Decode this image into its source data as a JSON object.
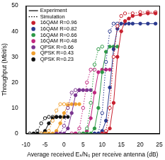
{
  "chart_data": {
    "type": "line",
    "x_label": "Average received Eₛ/N₀ per receive antenna (dB)",
    "y_label": "Throughput (Mbit/s)",
    "xlim": [
      -10,
      25
    ],
    "xticks": [
      -10,
      -5,
      0,
      5,
      10,
      15,
      20,
      25
    ],
    "ylim": [
      0,
      50
    ],
    "yticks": [
      0,
      10,
      20,
      30,
      40,
      50
    ],
    "grid": false,
    "legend": "upper left",
    "legend_styles": [
      {
        "name": "Experiment",
        "line_style": "solid",
        "marker": "filled circle"
      },
      {
        "name": "Simulation",
        "line_style": "dotted",
        "marker": "open circle"
      }
    ],
    "series": [
      {
        "name": "16QAM R=0.96",
        "color": "#c8202e",
        "experiment": {
          "x": [
            10,
            11,
            12,
            13,
            14,
            15,
            16,
            17,
            18,
            20,
            22,
            24
          ],
          "values": [
            0,
            0,
            2,
            12,
            30,
            40,
            44,
            45,
            46,
            46.5,
            47,
            47
          ]
        },
        "simulation": {
          "x": [
            10,
            11,
            12,
            13,
            14,
            15,
            16,
            18,
            20,
            22,
            24
          ],
          "values": [
            0,
            1,
            10,
            30,
            42,
            46,
            47,
            47,
            47.5,
            47.5,
            47.5
          ]
        }
      },
      {
        "name": "16QAM R=0.82",
        "color": "#2b3a8f",
        "experiment": {
          "x": [
            8,
            9,
            10,
            11,
            12,
            13,
            14,
            15,
            16,
            17,
            18,
            20,
            22,
            24
          ],
          "values": [
            0,
            0,
            1,
            5,
            18,
            33,
            41,
            43,
            43,
            43,
            43,
            43,
            43,
            43
          ]
        },
        "simulation": {
          "x": [
            8,
            9,
            10,
            11,
            12,
            13,
            14
          ],
          "values": [
            0,
            0,
            8,
            28,
            40,
            43,
            43
          ]
        }
      },
      {
        "name": "16QAM R=0.66",
        "color": "#2e9a47",
        "experiment": {
          "x": [
            5,
            6,
            7,
            8,
            9,
            10,
            11,
            12,
            13,
            14
          ],
          "values": [
            0,
            0,
            0,
            2,
            10,
            24,
            32,
            34,
            34,
            34
          ]
        },
        "simulation": {
          "x": [
            4,
            5,
            6,
            7,
            8,
            9,
            10
          ],
          "values": [
            0,
            0,
            2,
            12,
            27,
            33,
            34
          ]
        }
      },
      {
        "name": "16QAM R=0.48",
        "color": "#c0267e",
        "experiment": {
          "x": [
            3,
            4,
            5,
            6,
            7,
            8,
            9,
            10,
            11,
            12
          ],
          "values": [
            0,
            0,
            0,
            1,
            6,
            16,
            24,
            25,
            25,
            25
          ]
        },
        "simulation": {
          "x": [
            2,
            3,
            4,
            5,
            6,
            7,
            8
          ],
          "values": [
            0,
            0,
            2,
            10,
            20,
            25,
            25
          ]
        }
      },
      {
        "name": "QPSK R=0.66",
        "color": "#7a3590",
        "experiment": {
          "x": [
            -2,
            -1,
            0,
            1,
            2,
            3,
            4,
            5,
            6,
            7
          ],
          "values": [
            0,
            0,
            0,
            2,
            8,
            15,
            17,
            17,
            17,
            17
          ]
        },
        "simulation": {
          "x": [
            -1,
            0,
            1,
            2,
            3,
            4
          ],
          "values": [
            0,
            3,
            10,
            16,
            17,
            17
          ]
        }
      },
      {
        "name": "QPSK R=0.43",
        "color": "#f0a030",
        "experiment": {
          "x": [
            -5,
            -4,
            -3,
            -2,
            -1,
            0,
            1,
            2,
            3,
            4
          ],
          "values": [
            0,
            0,
            0,
            1,
            4,
            8,
            11,
            11.5,
            11.5,
            11.5
          ]
        },
        "simulation": {
          "x": [
            -6,
            -5,
            -4,
            -3,
            -2,
            -1,
            0,
            1
          ],
          "values": [
            0,
            0,
            1,
            5,
            9,
            11.5,
            11.5,
            11.5
          ]
        }
      },
      {
        "name": "QPSK R=0.23",
        "color": "#111111",
        "experiment": {
          "x": [
            -8,
            -7,
            -6,
            -5,
            -4,
            -3,
            -2,
            -1,
            0,
            1
          ],
          "values": [
            0,
            0,
            0,
            1,
            4,
            6,
            6.5,
            6.5,
            6.5,
            6.5
          ]
        },
        "simulation": {
          "x": [
            -9,
            -8,
            -7,
            -6,
            -5,
            -4,
            -3,
            -2
          ],
          "values": [
            0,
            0,
            1,
            4,
            6,
            6.5,
            6.5,
            6.5
          ]
        }
      }
    ]
  }
}
